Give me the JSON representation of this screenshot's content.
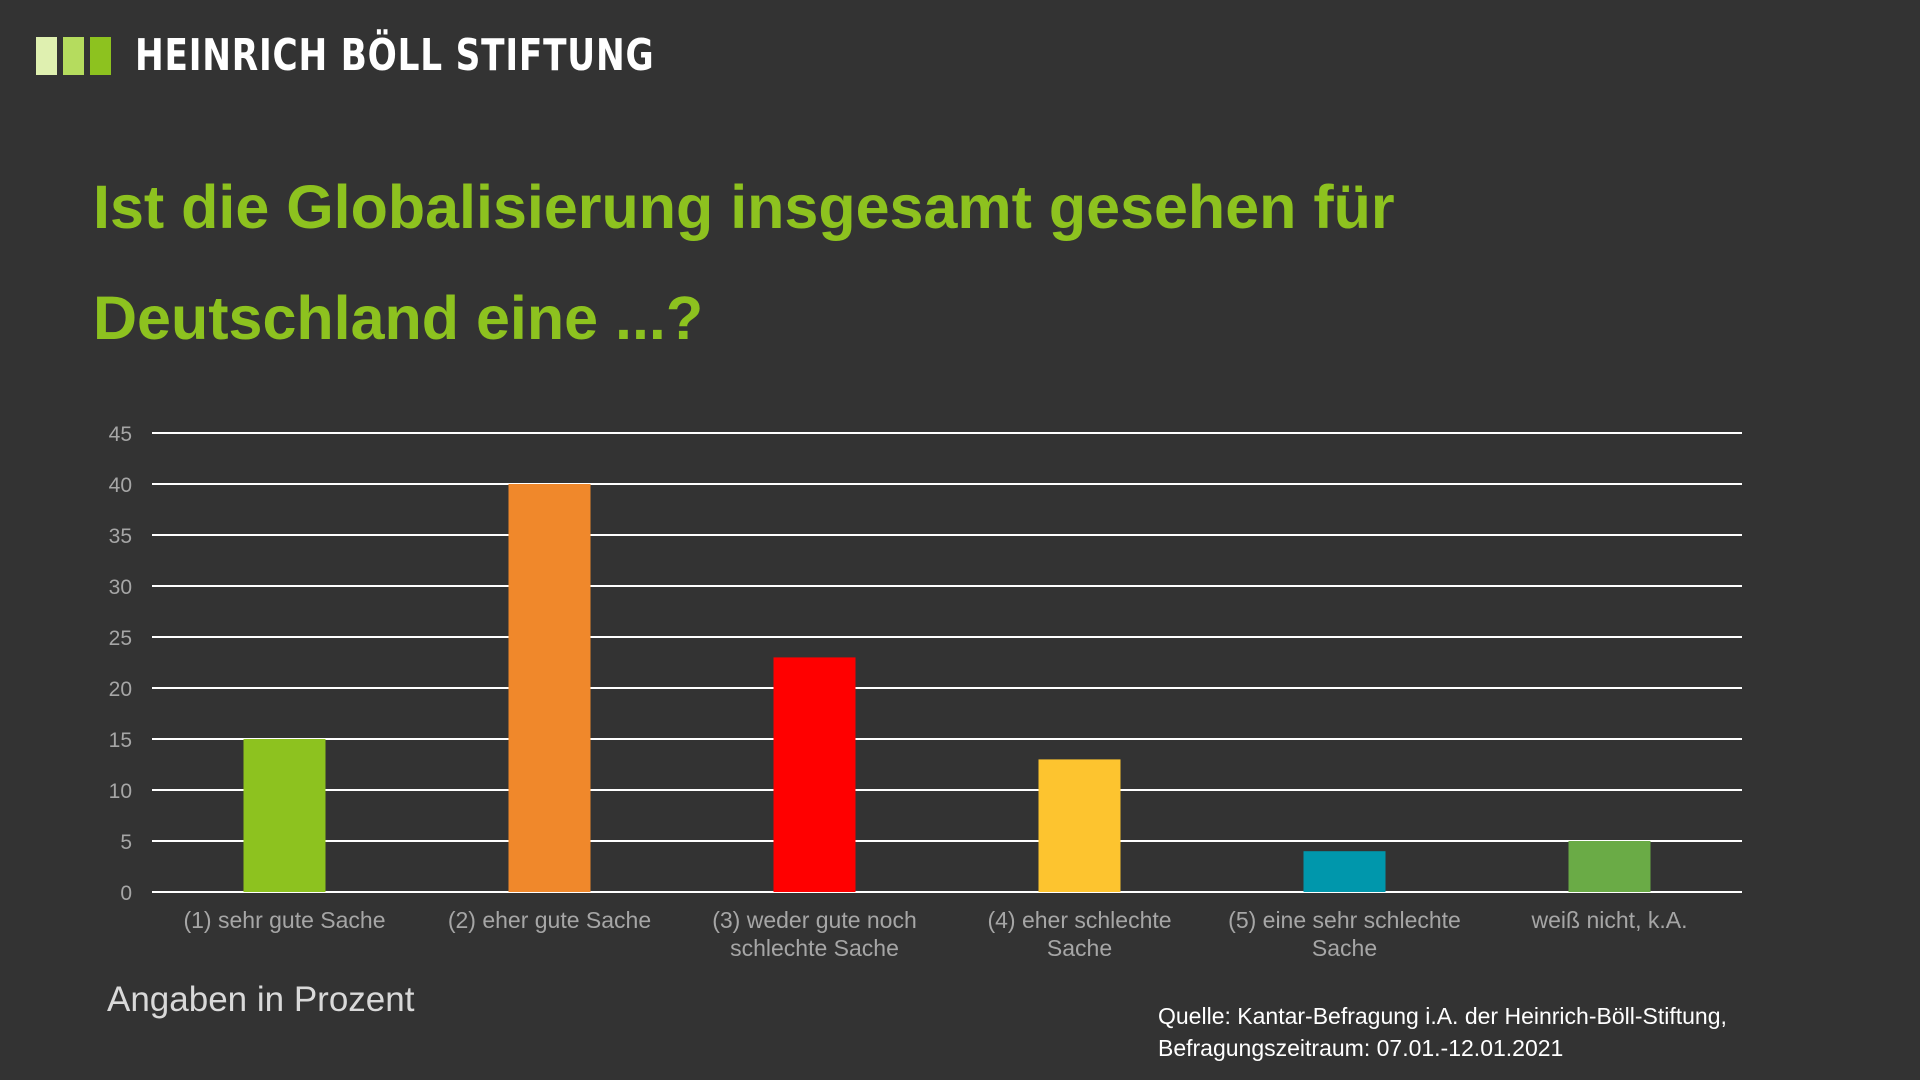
{
  "header": {
    "logo_text": "HEINRICH BÖLL STIFTUNG",
    "logo_colors": [
      "#dff0b0",
      "#b5dc5e",
      "#8dc21f"
    ]
  },
  "title": {
    "line1": "Ist die Globalisierung insgesamt gesehen für",
    "line2": "Deutschland eine ...?"
  },
  "note": "Angaben in Prozent",
  "source": {
    "line1": "Quelle: Kantar-Befragung i.A. der Heinrich-Böll-Stiftung,",
    "line2": "Befragungszeitraum: 07.01.-12.01.2021"
  },
  "colors": {
    "background": "#333333",
    "title": "#8dc21f",
    "gridline": "#ffffff",
    "axis_labels": "#a6a6a6"
  },
  "chart_data": {
    "type": "bar",
    "categories": [
      [
        "(1) sehr gute Sache"
      ],
      [
        "(2) eher gute Sache"
      ],
      [
        "(3) weder gute noch",
        "schlechte Sache"
      ],
      [
        "(4) eher schlechte",
        "Sache"
      ],
      [
        "(5) eine sehr schlechte",
        "Sache"
      ],
      [
        "weiß nicht, k.A."
      ]
    ],
    "values": [
      15,
      40,
      23,
      13,
      4,
      5
    ],
    "bar_colors": [
      "#8dc21f",
      "#f0882b",
      "#ff0000",
      "#fdc42f",
      "#0097ac",
      "#6aab46"
    ],
    "ylim": [
      0,
      45
    ],
    "yticks": [
      0,
      5,
      10,
      15,
      20,
      25,
      30,
      35,
      40,
      45
    ],
    "grid": true,
    "legend": "none"
  }
}
